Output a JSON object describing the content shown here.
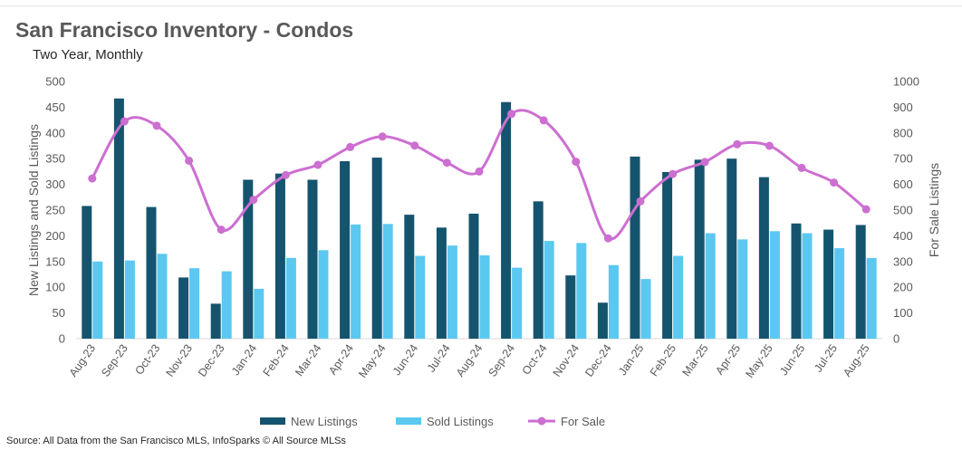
{
  "title": "San Francisco Inventory - Condos",
  "subtitle": "Two Year, Monthly",
  "source": "Source: All Data from the San Francisco MLS, InfoSparks © All Source MLSs",
  "colors": {
    "new_listings": "#15546e",
    "sold_listings": "#5bc8f0",
    "for_sale": "#cc6fd1"
  },
  "chart_data": {
    "type": "bar",
    "categories": [
      "Aug-23",
      "Sep-23",
      "Oct-23",
      "Nov-23",
      "Dec-23",
      "Jan-24",
      "Feb-24",
      "Mar-24",
      "Apr-24",
      "May-24",
      "Jun-24",
      "Jul-24",
      "Aug-24",
      "Sep-24",
      "Oct-24",
      "Nov-24",
      "Dec-24",
      "Jan-25",
      "Feb-25",
      "Mar-25",
      "Apr-25",
      "May-25",
      "Jun-25",
      "Jul-25",
      "Aug-25"
    ],
    "series": [
      {
        "name": "New Listings",
        "type": "bar",
        "axis": "left",
        "values": [
          258,
          467,
          256,
          119,
          68,
          309,
          321,
          309,
          345,
          352,
          241,
          216,
          243,
          460,
          267,
          123,
          70,
          354,
          324,
          348,
          350,
          314,
          224,
          212,
          221
        ]
      },
      {
        "name": "Sold Listings",
        "type": "bar",
        "axis": "left",
        "values": [
          150,
          152,
          165,
          137,
          131,
          97,
          157,
          172,
          222,
          223,
          161,
          181,
          162,
          138,
          190,
          186,
          143,
          116,
          161,
          205,
          193,
          209,
          205,
          176,
          157
        ]
      },
      {
        "name": "For Sale",
        "type": "line",
        "axis": "right",
        "values": [
          623,
          845,
          828,
          692,
          424,
          540,
          636,
          676,
          745,
          786,
          751,
          684,
          650,
          874,
          849,
          688,
          390,
          534,
          640,
          687,
          756,
          750,
          664,
          607,
          503
        ]
      }
    ],
    "y_left": {
      "label": "New Listings and Sold Listings",
      "range": [
        0,
        500
      ],
      "ticks": [
        "0",
        "50",
        "100",
        "150",
        "200",
        "250",
        "300",
        "350",
        "400",
        "450",
        "500"
      ]
    },
    "y_right": {
      "label": "For Sale Listings",
      "range": [
        0,
        1000
      ],
      "ticks": [
        "0",
        "100",
        "200",
        "300",
        "400",
        "500",
        "600",
        "700",
        "800",
        "900",
        "1000"
      ]
    },
    "grid": false,
    "legend": "bottom"
  }
}
